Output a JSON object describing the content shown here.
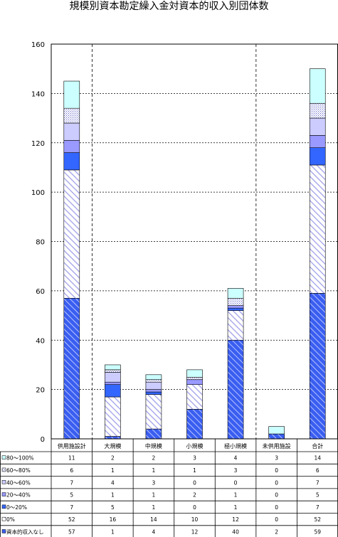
{
  "chart_data": {
    "type": "bar",
    "stacked": true,
    "title": "規模別資本勘定繰入金対資本的収入別団体数",
    "categories": [
      "供用施設計",
      "大規模",
      "中規模",
      "小規模",
      "極小規模",
      "未供用施設",
      "合計"
    ],
    "ylim": [
      0,
      160
    ],
    "yticks": [
      0,
      20,
      40,
      60,
      80,
      100,
      120,
      140,
      160
    ],
    "grid": true,
    "legend": "table-below",
    "series": [
      {
        "name": "資本的収入なし",
        "values": [
          57,
          1,
          4,
          12,
          40,
          2,
          59
        ],
        "color": "#3a5ef0",
        "pattern": "hatch-blue"
      },
      {
        "name": "0%",
        "values": [
          52,
          16,
          14,
          10,
          12,
          0,
          52
        ],
        "color": "#9999ff",
        "pattern": "hatch-lavender"
      },
      {
        "name": "0～20%",
        "values": [
          7,
          5,
          1,
          0,
          1,
          0,
          7
        ],
        "color": "#3366ff",
        "pattern": "solid"
      },
      {
        "name": "20～40%",
        "values": [
          5,
          1,
          1,
          2,
          1,
          0,
          5
        ],
        "color": "#9999ff",
        "pattern": "solid"
      },
      {
        "name": "40～60%",
        "values": [
          7,
          4,
          3,
          0,
          0,
          0,
          7
        ],
        "color": "#ccccff",
        "pattern": "solid"
      },
      {
        "name": "60～80%",
        "values": [
          6,
          1,
          1,
          1,
          3,
          0,
          6
        ],
        "color": "#ccccff",
        "pattern": "dots"
      },
      {
        "name": "80～100%",
        "values": [
          11,
          2,
          2,
          3,
          4,
          3,
          14
        ],
        "color": "#ccffff",
        "pattern": "solid"
      }
    ]
  }
}
